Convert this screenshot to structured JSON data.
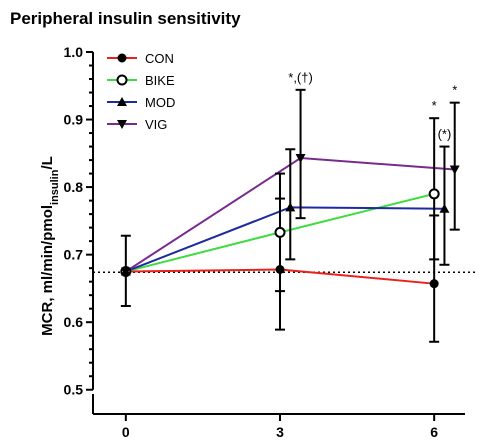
{
  "chart_data": {
    "type": "line",
    "title": "Peripheral insulin sensitivity",
    "ylabel": {
      "prefix": "MCR, ml/min/pmol",
      "subscript": "insulin",
      "suffix": "/L"
    },
    "xlabel": "",
    "x_ticks": [
      0,
      3,
      6
    ],
    "y_ticks": [
      "0.5",
      "0.6",
      "0.7",
      "0.8",
      "0.9",
      "1.0"
    ],
    "ylim": [
      0.47,
      1.0
    ],
    "xlim": [
      -0.6,
      6.6
    ],
    "reference_line_y": 0.674,
    "legend_position": "top-left",
    "series": [
      {
        "name": "CON",
        "color": "#e8231e",
        "marker": "circle-filled",
        "points": [
          {
            "x": 0,
            "y": 0.675,
            "lo": 0.624,
            "hi": 0.728
          },
          {
            "x": 3,
            "y": 0.678,
            "lo": 0.589,
            "hi": 0.783
          },
          {
            "x": 6,
            "y": 0.657,
            "lo": 0.571,
            "hi": 0.758
          }
        ]
      },
      {
        "name": "BIKE",
        "color": "#3fdc3f",
        "marker": "circle-open",
        "points": [
          {
            "x": 0,
            "y": 0.675
          },
          {
            "x": 3,
            "y": 0.733,
            "lo": 0.646,
            "hi": 0.82
          },
          {
            "x": 6,
            "y": 0.79,
            "lo": 0.693,
            "hi": 0.902
          }
        ]
      },
      {
        "name": "MOD",
        "color": "#1f2a9e",
        "marker": "triangle-up",
        "points": [
          {
            "x": 0,
            "y": 0.675
          },
          {
            "x": 3,
            "y": 0.77,
            "lo": 0.693,
            "hi": 0.856
          },
          {
            "x": 6,
            "y": 0.768,
            "lo": 0.685,
            "hi": 0.86
          }
        ]
      },
      {
        "name": "VIG",
        "color": "#7a2a8e",
        "marker": "triangle-down",
        "points": [
          {
            "x": 0,
            "y": 0.675
          },
          {
            "x": 3,
            "y": 0.843,
            "lo": 0.754,
            "hi": 0.944
          },
          {
            "x": 6,
            "y": 0.826,
            "lo": 0.737,
            "hi": 0.925
          }
        ]
      }
    ],
    "annotations": [
      {
        "text": "*,(†)",
        "x": 3,
        "series": "VIG"
      },
      {
        "text": "*",
        "x": 6,
        "series": "BIKE"
      },
      {
        "text": "(*)",
        "x": 6,
        "series": "MOD"
      },
      {
        "text": "*",
        "x": 6,
        "series": "VIG"
      }
    ]
  }
}
